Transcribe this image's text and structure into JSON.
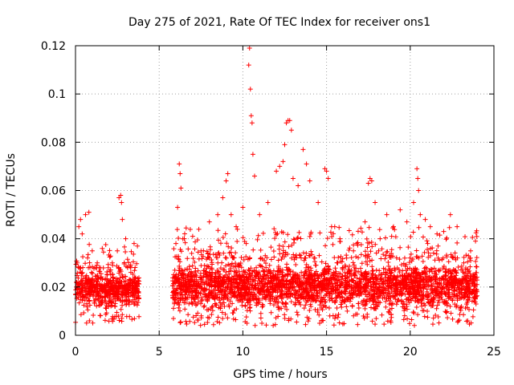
{
  "chart_data": {
    "type": "scatter",
    "title": "Day 275 of 2021, Rate Of TEC Index for receiver ons1",
    "xlabel": "GPS time / hours",
    "ylabel": "ROTI / TECUs",
    "xlim": [
      0,
      25
    ],
    "ylim": [
      0,
      0.12
    ],
    "xticks": [
      0,
      5,
      10,
      15,
      20,
      25
    ],
    "yticks": [
      0,
      0.02,
      0.04,
      0.06,
      0.08,
      0.1,
      0.12
    ],
    "xtick_labels": [
      "0",
      "5",
      "10",
      "15",
      "20",
      "25"
    ],
    "ytick_labels": [
      "0",
      "0.02",
      "0.04",
      "0.06",
      "0.08",
      "0.1",
      "0.12"
    ],
    "grid": true,
    "marker": "+",
    "color": "#ff0000",
    "series": [
      {
        "points": [
          [
            0.1,
            0.03
          ],
          [
            0.2,
            0.045
          ],
          [
            0.3,
            0.048
          ],
          [
            0.4,
            0.042
          ],
          [
            0.6,
            0.05
          ],
          [
            0.8,
            0.051
          ],
          [
            1.0,
            0.035
          ],
          [
            1.3,
            0.03
          ],
          [
            1.6,
            0.036
          ],
          [
            1.9,
            0.025
          ],
          [
            2.2,
            0.03
          ],
          [
            2.5,
            0.035
          ],
          [
            2.6,
            0.057
          ],
          [
            2.7,
            0.058
          ],
          [
            2.75,
            0.055
          ],
          [
            2.8,
            0.048
          ],
          [
            3.0,
            0.04
          ],
          [
            3.3,
            0.028
          ],
          [
            3.5,
            0.038
          ],
          [
            3.7,
            0.037
          ],
          [
            6.0,
            0.038
          ],
          [
            6.1,
            0.053
          ],
          [
            6.2,
            0.071
          ],
          [
            6.25,
            0.067
          ],
          [
            6.3,
            0.061
          ],
          [
            6.5,
            0.04
          ],
          [
            7.0,
            0.041
          ],
          [
            7.5,
            0.035
          ],
          [
            8.0,
            0.047
          ],
          [
            8.5,
            0.05
          ],
          [
            8.8,
            0.057
          ],
          [
            9.0,
            0.064
          ],
          [
            9.1,
            0.067
          ],
          [
            9.3,
            0.05
          ],
          [
            9.6,
            0.045
          ],
          [
            10.0,
            0.053
          ],
          [
            10.2,
            0.038
          ],
          [
            10.35,
            0.112
          ],
          [
            10.4,
            0.119
          ],
          [
            10.45,
            0.102
          ],
          [
            10.5,
            0.091
          ],
          [
            10.55,
            0.088
          ],
          [
            10.6,
            0.075
          ],
          [
            10.7,
            0.066
          ],
          [
            11.0,
            0.05
          ],
          [
            11.5,
            0.055
          ],
          [
            12.0,
            0.068
          ],
          [
            12.2,
            0.07
          ],
          [
            12.4,
            0.072
          ],
          [
            12.5,
            0.079
          ],
          [
            12.6,
            0.088
          ],
          [
            12.7,
            0.089
          ],
          [
            12.8,
            0.089
          ],
          [
            12.9,
            0.085
          ],
          [
            13.0,
            0.065
          ],
          [
            13.3,
            0.062
          ],
          [
            13.6,
            0.077
          ],
          [
            13.8,
            0.071
          ],
          [
            14.0,
            0.064
          ],
          [
            14.5,
            0.055
          ],
          [
            14.9,
            0.069
          ],
          [
            15.0,
            0.068
          ],
          [
            15.1,
            0.065
          ],
          [
            15.3,
            0.045
          ],
          [
            15.8,
            0.04
          ],
          [
            16.2,
            0.032
          ],
          [
            16.8,
            0.038
          ],
          [
            17.3,
            0.047
          ],
          [
            17.5,
            0.063
          ],
          [
            17.6,
            0.065
          ],
          [
            17.7,
            0.064
          ],
          [
            17.9,
            0.055
          ],
          [
            18.2,
            0.04
          ],
          [
            18.6,
            0.05
          ],
          [
            19.0,
            0.045
          ],
          [
            19.4,
            0.052
          ],
          [
            19.8,
            0.047
          ],
          [
            20.2,
            0.055
          ],
          [
            20.4,
            0.069
          ],
          [
            20.45,
            0.065
          ],
          [
            20.5,
            0.06
          ],
          [
            20.6,
            0.05
          ],
          [
            20.9,
            0.048
          ],
          [
            21.2,
            0.045
          ],
          [
            21.6,
            0.042
          ],
          [
            22.0,
            0.043
          ],
          [
            22.4,
            0.05
          ],
          [
            22.8,
            0.045
          ],
          [
            23.2,
            0.03
          ],
          [
            23.6,
            0.032
          ],
          [
            23.9,
            0.039
          ]
        ]
      }
    ],
    "bands": [
      {
        "x": [
          0.0,
          3.8
        ],
        "floor": 0.005,
        "core": [
          0.01,
          0.028
        ],
        "tail_max": 0.038
      },
      {
        "x": [
          5.8,
          24.0
        ],
        "floor": 0.004,
        "core": [
          0.009,
          0.032
        ],
        "tail_max": 0.045
      }
    ]
  }
}
